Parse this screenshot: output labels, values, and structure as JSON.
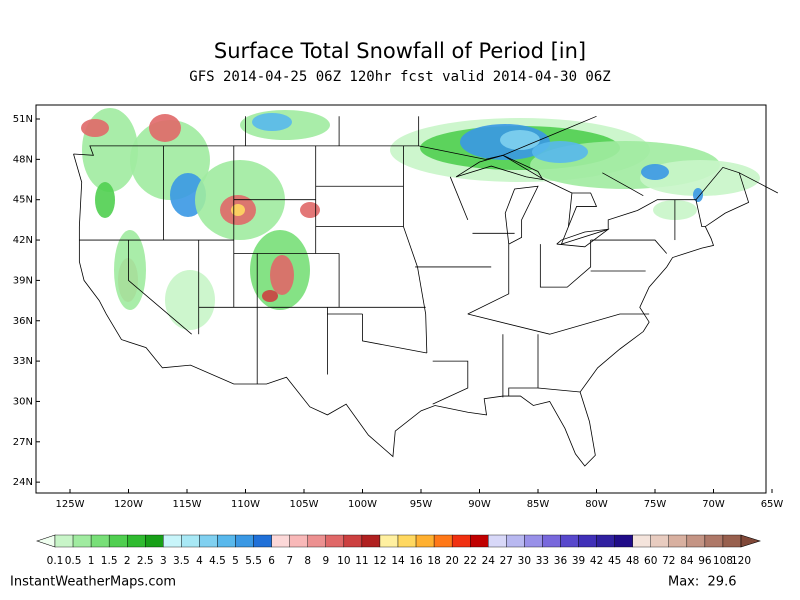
{
  "title": "Surface Total Snowfall of Period [in]",
  "subtitle": "GFS 2014-04-25 06Z 120hr fcst valid 2014-04-30 06Z",
  "lat_labels": [
    "51N",
    "48N",
    "45N",
    "42N",
    "39N",
    "36N",
    "33N",
    "30N",
    "27N",
    "24N"
  ],
  "lon_labels": [
    "125W",
    "120W",
    "115W",
    "110W",
    "105W",
    "100W",
    "95W",
    "90W",
    "85W",
    "80W",
    "75W",
    "70W",
    "65W"
  ],
  "colorbar": {
    "labels": [
      "0.1",
      "0.5",
      "1",
      "1.5",
      "2",
      "2.5",
      "3",
      "3.5",
      "4",
      "4.5",
      "5",
      "5.5",
      "6",
      "7",
      "8",
      "9",
      "10",
      "11",
      "12",
      "14",
      "16",
      "18",
      "20",
      "22",
      "24",
      "27",
      "30",
      "33",
      "36",
      "39",
      "42",
      "45",
      "48",
      "60",
      "72",
      "84",
      "96",
      "108",
      "120"
    ],
    "colors": [
      "#f0fff0",
      "#c8f5c8",
      "#a0eba0",
      "#78df78",
      "#50cf50",
      "#30bb30",
      "#18a018",
      "#c8f5fa",
      "#a8e8f5",
      "#80d0f0",
      "#58b8ec",
      "#3a98e4",
      "#2070d8",
      "#fcd8d8",
      "#f8b8b8",
      "#ec9090",
      "#e06868",
      "#cc4040",
      "#b02020",
      "#fff0a0",
      "#ffd860",
      "#ffb030",
      "#ff7818",
      "#f03010",
      "#c00000",
      "#d8d8f8",
      "#b8b8f0",
      "#9890e8",
      "#7868dc",
      "#5848cc",
      "#4030b8",
      "#3020a0",
      "#200c88",
      "#f4e4dc",
      "#e8ccc0",
      "#d8b0a0",
      "#c49484",
      "#ae7868",
      "#98604e",
      "#804838"
    ]
  },
  "footer": {
    "site": "InstantWeatherMaps.com",
    "max": "Max:  29.6"
  }
}
